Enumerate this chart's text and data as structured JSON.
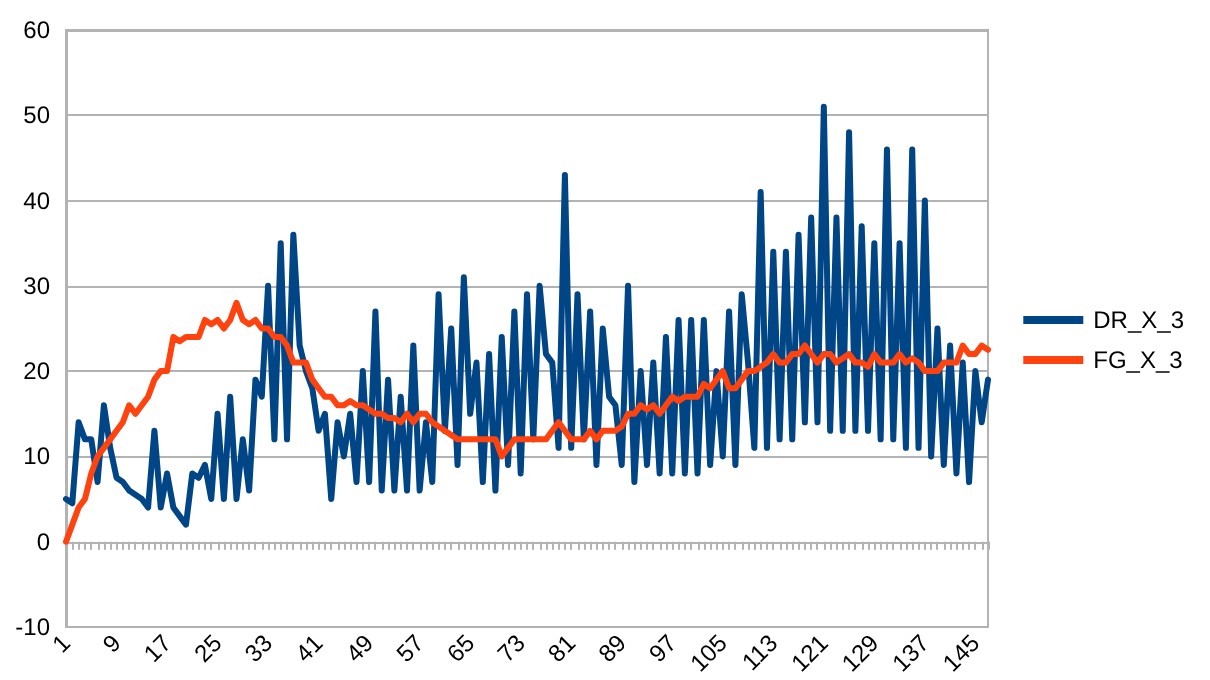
{
  "chart_data": {
    "type": "line",
    "categories": [
      "1",
      null,
      null,
      null,
      null,
      null,
      null,
      null,
      "9",
      null,
      null,
      null,
      null,
      null,
      null,
      null,
      "17",
      null,
      null,
      null,
      null,
      null,
      null,
      null,
      "25",
      null,
      null,
      null,
      null,
      null,
      null,
      null,
      "33",
      null,
      null,
      null,
      null,
      null,
      null,
      null,
      "41",
      null,
      null,
      null,
      null,
      null,
      null,
      null,
      "49",
      null,
      null,
      null,
      null,
      null,
      null,
      null,
      "57",
      null,
      null,
      null,
      null,
      null,
      null,
      null,
      "65",
      null,
      null,
      null,
      null,
      null,
      null,
      null,
      "73",
      null,
      null,
      null,
      null,
      null,
      null,
      null,
      "81",
      null,
      null,
      null,
      null,
      null,
      null,
      null,
      "89",
      null,
      null,
      null,
      null,
      null,
      null,
      null,
      "97",
      null,
      null,
      null,
      null,
      null,
      null,
      null,
      "105",
      null,
      null,
      null,
      null,
      null,
      null,
      null,
      "113",
      null,
      null,
      null,
      null,
      null,
      null,
      null,
      "121",
      null,
      null,
      null,
      null,
      null,
      null,
      null,
      "129",
      null,
      null,
      null,
      null,
      null,
      null,
      null,
      "137",
      null,
      null,
      null,
      null,
      null,
      null,
      null,
      "145",
      null,
      null
    ],
    "series": [
      {
        "name": "DR_X_3",
        "color": "#004586",
        "values": [
          5,
          4.5,
          14,
          12,
          12,
          7,
          16,
          11,
          7.5,
          7,
          6,
          5.5,
          5,
          4,
          13,
          4,
          8,
          4,
          3,
          2,
          8,
          7.5,
          9,
          5,
          15,
          5,
          17,
          5,
          12,
          6,
          19,
          17,
          30,
          12,
          35,
          12,
          36,
          23,
          20,
          18,
          13,
          15,
          5,
          14,
          10,
          15,
          7,
          20,
          7,
          27,
          6,
          19,
          6,
          17,
          6,
          23,
          6,
          14,
          7,
          29,
          13,
          25,
          9,
          31,
          15,
          21,
          7,
          22,
          6,
          24,
          9,
          27,
          8,
          29,
          12,
          30,
          22,
          21,
          11,
          43,
          11,
          29,
          12,
          27,
          9,
          25,
          17,
          16,
          9,
          30,
          7,
          20,
          9,
          21,
          8,
          24,
          8,
          26,
          8,
          26,
          8,
          26,
          9,
          20,
          10,
          27,
          9,
          29,
          21,
          11,
          41,
          11,
          34,
          12,
          34,
          12,
          36,
          14,
          38,
          14,
          51,
          13,
          38,
          13,
          48,
          13,
          37,
          13,
          35,
          12,
          46,
          12,
          35,
          11,
          46,
          11,
          40,
          10,
          25,
          9,
          23,
          8,
          21,
          7,
          20,
          14,
          19
        ]
      },
      {
        "name": "FG_X_3",
        "color": "#ff420e",
        "values": [
          0,
          2,
          4,
          5,
          8,
          10,
          11,
          12,
          13,
          14,
          16,
          15,
          16,
          17,
          19,
          20,
          20,
          24,
          23.5,
          24,
          24,
          24,
          26,
          25.5,
          26,
          25,
          26,
          28,
          26,
          25.5,
          26,
          25,
          25,
          24,
          24,
          23,
          21,
          21,
          21,
          19,
          18,
          17,
          17,
          16,
          16,
          16.5,
          16,
          16,
          15.5,
          15,
          15,
          14.5,
          14.5,
          14,
          15,
          14,
          15,
          15,
          14,
          13.5,
          13,
          12.5,
          12,
          12,
          12,
          12,
          12,
          12,
          12,
          10,
          11,
          12,
          12,
          12,
          12,
          12,
          12,
          13,
          14,
          13,
          12,
          12,
          12,
          13,
          12,
          13,
          13,
          13,
          13.5,
          15,
          15,
          16,
          15.5,
          16,
          15,
          16,
          17,
          16.5,
          17,
          17,
          17,
          18.5,
          18,
          19,
          20,
          18,
          18,
          19,
          20,
          20,
          20.5,
          21,
          22,
          21,
          21,
          22,
          22,
          23,
          22,
          21,
          22,
          22,
          21,
          21.5,
          22,
          21,
          21,
          20.5,
          22,
          21,
          21,
          21,
          22,
          21,
          21.5,
          21,
          20,
          20,
          20,
          21,
          21,
          21,
          23,
          22,
          22,
          23,
          22.5
        ]
      }
    ],
    "ylim": [
      -10,
      60
    ],
    "yticks": [
      -10,
      0,
      10,
      20,
      30,
      40,
      50,
      60
    ],
    "grid": "y",
    "legend": "right",
    "marker": "none",
    "line_style": "solid"
  }
}
